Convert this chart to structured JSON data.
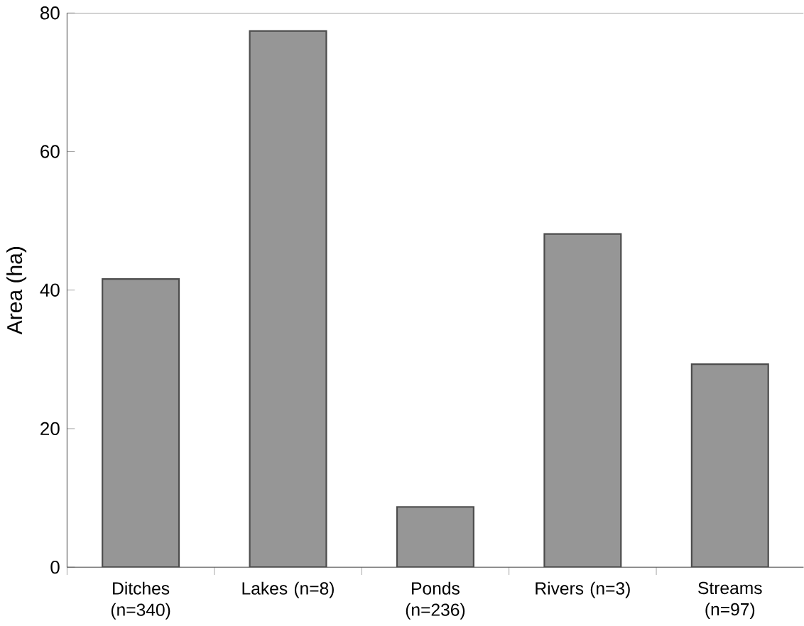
{
  "chart_data": {
    "type": "bar",
    "ylabel": "Area (ha)",
    "categories": [
      "Ditches (n=340)",
      "Lakes (n=8)",
      "Ponds (n=236)",
      "Rivers (n=3)",
      "Streams (n=97)"
    ],
    "values": [
      41.6,
      77.4,
      8.7,
      48.1,
      29.3
    ],
    "color": "#969696",
    "ylim": [
      0,
      80
    ],
    "yticks": [
      0,
      20,
      40,
      60,
      80
    ]
  }
}
